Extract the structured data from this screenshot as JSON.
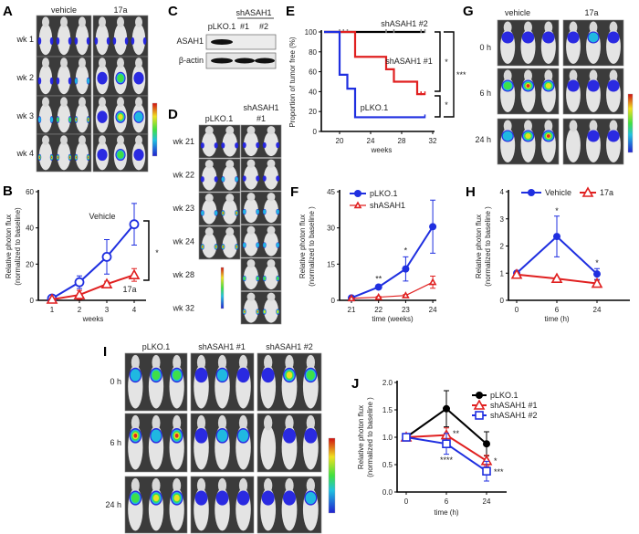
{
  "panels": {
    "A": "A",
    "B": "B",
    "C": "C",
    "D": "D",
    "E": "E",
    "F": "F",
    "G": "G",
    "H": "H",
    "I": "I",
    "J": "J"
  },
  "panel_A": {
    "columns": [
      "vehicle",
      "17a"
    ],
    "rows": [
      "wk 1",
      "wk 2",
      "wk 3",
      "wk 4"
    ]
  },
  "panel_C": {
    "group": "shASAH1",
    "lanes": [
      "pLKO.1",
      "#1",
      "#2"
    ],
    "bands": [
      "ASAH1",
      "β-actin"
    ]
  },
  "panel_D": {
    "col1": "pLKO.1",
    "col2_line1": "shASAH1",
    "col2_line2": "#1",
    "rows": [
      "wk 21",
      "wk 22",
      "wk 23",
      "wk 24",
      "wk 28",
      "wk 32"
    ]
  },
  "panel_G": {
    "columns": [
      "vehicle",
      "17a"
    ],
    "rows": [
      "0 h",
      "6 h",
      "24 h"
    ]
  },
  "panel_I": {
    "columns": [
      "pLKO.1",
      "shASAH1 #1",
      "shASAH1 #2"
    ],
    "rows": [
      "0 h",
      "6 h",
      "24 h"
    ]
  },
  "colors": {
    "blue": "#1f2fe0",
    "red": "#e02020",
    "black": "#000000",
    "censor": "#888888"
  },
  "chart_data": [
    {
      "id": "B",
      "type": "line",
      "xlabel": "weeks",
      "ylabel": "Relative photon flux",
      "ylabel2": "(normalized to baseline)",
      "x": [
        1,
        2,
        3,
        4
      ],
      "xticks": [
        "1",
        "2",
        "3",
        "4"
      ],
      "ylim": [
        0,
        60
      ],
      "yticks": [
        "0",
        "20",
        "40",
        "60"
      ],
      "series": [
        {
          "name": "Vehicle",
          "values": [
            1,
            10,
            24,
            42
          ],
          "errors": [
            0.5,
            3.5,
            9.5,
            11.5
          ],
          "color": "#1f2fe0",
          "marker": "open-circle"
        },
        {
          "name": "17a",
          "values": [
            0.5,
            3,
            9,
            14
          ],
          "errors": [
            0.3,
            2.5,
            1.5,
            3.5
          ],
          "color": "#e02020",
          "marker": "open-triangle"
        }
      ],
      "annotations": [
        "*"
      ]
    },
    {
      "id": "E",
      "type": "line",
      "subtype": "kaplan-meier",
      "xlabel": "weeks",
      "ylabel": "Proportion of tumor free (%)",
      "xlim": [
        18,
        32
      ],
      "xticks": [
        "20",
        "24",
        "28",
        "32"
      ],
      "ylim": [
        0,
        100
      ],
      "yticks": [
        "0",
        "20",
        "40",
        "60",
        "80",
        "100"
      ],
      "series": [
        {
          "name": "shASAH1 #2",
          "steps": [
            [
              18,
              100
            ],
            [
              31,
              100
            ]
          ],
          "censored": [
            20,
            20.5,
            21,
            26,
            27,
            30.5,
            31
          ],
          "color": "#000000"
        },
        {
          "name": "shASAH1 #1",
          "steps": [
            [
              18,
              100
            ],
            [
              22,
              75
            ],
            [
              26,
              62.5
            ],
            [
              27,
              50
            ],
            [
              30,
              37.5
            ],
            [
              31,
              37.5
            ]
          ],
          "censored": [
            30.5,
            31
          ],
          "color": "#e02020"
        },
        {
          "name": "pLKO.1",
          "steps": [
            [
              18,
              100
            ],
            [
              20,
              57
            ],
            [
              21,
              43
            ],
            [
              22,
              14.3
            ],
            [
              31,
              14.3
            ]
          ],
          "censored": [
            31
          ],
          "color": "#1f2fe0"
        }
      ],
      "annotations": [
        "*",
        "*",
        "***"
      ]
    },
    {
      "id": "F",
      "type": "line",
      "xlabel": "time (weeks)",
      "ylabel": "Relative photon flux",
      "ylabel2": "(normalized to baseline )",
      "x": [
        21,
        22,
        23,
        24
      ],
      "xticks": [
        "21",
        "22",
        "23",
        "24"
      ],
      "ylim": [
        0,
        45
      ],
      "yticks": [
        "0",
        "15",
        "30",
        "45"
      ],
      "series": [
        {
          "name": "pLKO.1",
          "values": [
            1,
            5.5,
            13,
            30.5
          ],
          "errors": [
            0.3,
            0.5,
            5,
            11
          ],
          "color": "#1f2fe0",
          "marker": "filled-circle"
        },
        {
          "name": "shASAH1",
          "values": [
            0.8,
            1.3,
            2,
            7.5
          ],
          "errors": [
            0.2,
            0.3,
            0.4,
            2.5
          ],
          "color": "#e02020",
          "marker": "open-triangle-small"
        }
      ],
      "annotations": [
        "**",
        "*"
      ],
      "legend": "top-left"
    },
    {
      "id": "H",
      "type": "line",
      "xlabel": "time  (h)",
      "ylabel": "Relative photon flux",
      "ylabel2": "(normalized to baseline )",
      "x": [
        0,
        6,
        24
      ],
      "xticks": [
        "0",
        "6",
        "24"
      ],
      "ylim": [
        0,
        4
      ],
      "yticks": [
        "0",
        "1",
        "2",
        "3",
        "4"
      ],
      "series": [
        {
          "name": "Vehicle",
          "values": [
            1,
            2.35,
            0.97
          ],
          "errors": [
            0.05,
            0.75,
            0.2
          ],
          "color": "#1f2fe0",
          "marker": "filled-circle"
        },
        {
          "name": "17a",
          "values": [
            0.95,
            0.8,
            0.62
          ],
          "errors": [
            0.05,
            0.05,
            0.12
          ],
          "color": "#e02020",
          "marker": "open-triangle"
        }
      ],
      "annotations": [
        "*",
        "*"
      ],
      "legend": "top"
    },
    {
      "id": "J",
      "type": "line",
      "xlabel": "time  (h)",
      "ylabel": "Relative photon flux",
      "ylabel2": "(normalized to baseline )",
      "x": [
        0,
        6,
        24
      ],
      "xticks": [
        "0",
        "6",
        "24"
      ],
      "ylim": [
        0,
        2
      ],
      "yticks": [
        "0.0",
        "0.5",
        "1.0",
        "1.5",
        "2.0"
      ],
      "series": [
        {
          "name": "pLKO.1",
          "values": [
            1,
            1.52,
            0.88
          ],
          "errors": [
            0.02,
            0.33,
            0.22
          ],
          "color": "#000000",
          "marker": "filled-circle"
        },
        {
          "name": "shASAH1 #1",
          "values": [
            1,
            1.04,
            0.57
          ],
          "errors": [
            0.02,
            0.13,
            0.1
          ],
          "color": "#e02020",
          "marker": "open-triangle"
        },
        {
          "name": "shASAH1 #2",
          "values": [
            1,
            0.88,
            0.38
          ],
          "errors": [
            0.02,
            0.19,
            0.18
          ],
          "color": "#1f2fe0",
          "marker": "open-square"
        }
      ],
      "annotations": [
        "**",
        "****",
        "*",
        "***"
      ],
      "legend": "top-right"
    }
  ]
}
